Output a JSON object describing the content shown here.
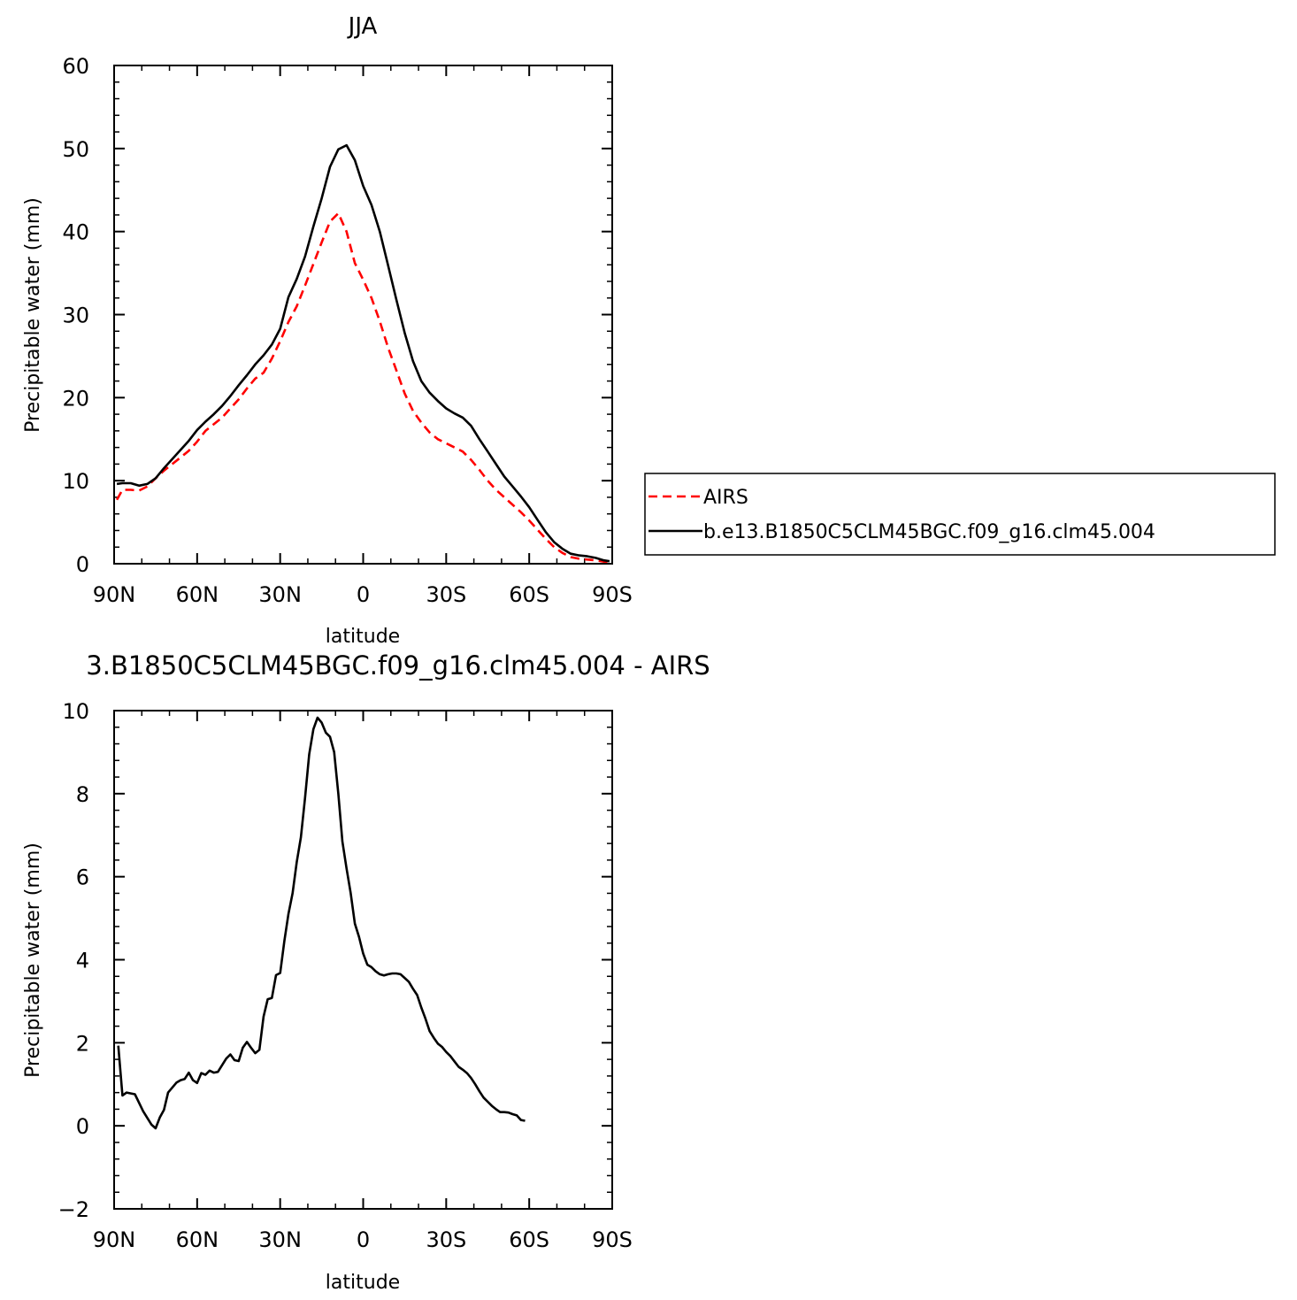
{
  "chart_data": [
    {
      "type": "line",
      "title": "JJA",
      "xlabel": "latitude",
      "ylabel": "Precipitable water (mm)",
      "xlim": [
        90,
        -90
      ],
      "ylim": [
        0,
        60
      ],
      "xticks": [
        {
          "v": 90,
          "label": "90N"
        },
        {
          "v": 60,
          "label": "60N"
        },
        {
          "v": 30,
          "label": "30N"
        },
        {
          "v": 0,
          "label": "0"
        },
        {
          "v": -30,
          "label": "30S"
        },
        {
          "v": -60,
          "label": "60S"
        },
        {
          "v": -90,
          "label": "90S"
        }
      ],
      "yticks": [
        {
          "v": 0,
          "label": "0"
        },
        {
          "v": 10,
          "label": "10"
        },
        {
          "v": 20,
          "label": "20"
        },
        {
          "v": 30,
          "label": "30"
        },
        {
          "v": 40,
          "label": "40"
        },
        {
          "v": 50,
          "label": "50"
        },
        {
          "v": 60,
          "label": "60"
        }
      ],
      "legend_position": "right",
      "series": [
        {
          "name": "AIRS",
          "color": "#ff0000",
          "dash": "dashed",
          "points": [
            [
              89,
              7.7
            ],
            [
              87,
              8.9
            ],
            [
              84,
              8.9
            ],
            [
              81,
              8.8
            ],
            [
              78,
              9.3
            ],
            [
              75,
              10.3
            ],
            [
              72,
              11.2
            ],
            [
              69,
              12.0
            ],
            [
              66,
              12.8
            ],
            [
              63,
              13.6
            ],
            [
              60,
              14.7
            ],
            [
              57,
              16.0
            ],
            [
              54,
              16.8
            ],
            [
              51,
              17.6
            ],
            [
              48,
              18.7
            ],
            [
              45,
              19.8
            ],
            [
              42,
              21.1
            ],
            [
              39,
              22.3
            ],
            [
              36,
              23.0
            ],
            [
              33,
              24.7
            ],
            [
              30,
              26.8
            ],
            [
              27,
              29.1
            ],
            [
              24,
              31.0
            ],
            [
              21,
              33.5
            ],
            [
              18,
              36.1
            ],
            [
              15,
              38.7
            ],
            [
              12,
              41.2
            ],
            [
              9,
              42.2
            ],
            [
              6,
              40.0
            ],
            [
              3,
              36.2
            ],
            [
              0,
              34.2
            ],
            [
              -3,
              32.0
            ],
            [
              -6,
              29.2
            ],
            [
              -9,
              26.0
            ],
            [
              -12,
              23.3
            ],
            [
              -15,
              20.5
            ],
            [
              -18,
              18.4
            ],
            [
              -21,
              17.0
            ],
            [
              -24,
              15.8
            ],
            [
              -27,
              15.0
            ],
            [
              -30,
              14.5
            ],
            [
              -33,
              14.0
            ],
            [
              -36,
              13.5
            ],
            [
              -39,
              12.5
            ],
            [
              -42,
              11.3
            ],
            [
              -45,
              10.0
            ],
            [
              -48,
              8.9
            ],
            [
              -51,
              8.0
            ],
            [
              -54,
              7.1
            ],
            [
              -57,
              6.2
            ],
            [
              -60,
              5.2
            ],
            [
              -63,
              4.1
            ],
            [
              -66,
              3.0
            ],
            [
              -69,
              2.0
            ],
            [
              -72,
              1.3
            ],
            [
              -75,
              0.8
            ],
            [
              -78,
              0.6
            ],
            [
              -81,
              0.5
            ],
            [
              -84,
              0.4
            ],
            [
              -87,
              0.25
            ],
            [
              -89,
              0.2
            ]
          ]
        },
        {
          "name": "b.e13.B1850C5CLM45BGC.f09_g16.clm45.004",
          "color": "#000000",
          "dash": "solid",
          "points": [
            [
              89,
              9.6
            ],
            [
              87,
              9.7
            ],
            [
              84,
              9.7
            ],
            [
              81,
              9.4
            ],
            [
              78,
              9.6
            ],
            [
              75,
              10.3
            ],
            [
              72,
              11.5
            ],
            [
              69,
              12.6
            ],
            [
              66,
              13.7
            ],
            [
              63,
              14.8
            ],
            [
              60,
              16.1
            ],
            [
              57,
              17.1
            ],
            [
              54,
              18.0
            ],
            [
              51,
              19.0
            ],
            [
              48,
              20.2
            ],
            [
              45,
              21.5
            ],
            [
              42,
              22.7
            ],
            [
              39,
              24.0
            ],
            [
              36,
              25.1
            ],
            [
              33,
              26.4
            ],
            [
              30,
              28.3
            ],
            [
              27,
              32.1
            ],
            [
              24,
              34.3
            ],
            [
              21,
              37.0
            ],
            [
              18,
              40.6
            ],
            [
              15,
              44.0
            ],
            [
              12,
              47.8
            ],
            [
              9,
              49.9
            ],
            [
              6,
              50.4
            ],
            [
              3,
              48.6
            ],
            [
              0,
              45.5
            ],
            [
              -3,
              43.2
            ],
            [
              -6,
              40.0
            ],
            [
              -9,
              35.9
            ],
            [
              -12,
              31.8
            ],
            [
              -15,
              27.8
            ],
            [
              -18,
              24.4
            ],
            [
              -21,
              22.0
            ],
            [
              -24,
              20.6
            ],
            [
              -27,
              19.6
            ],
            [
              -30,
              18.7
            ],
            [
              -33,
              18.1
            ],
            [
              -36,
              17.6
            ],
            [
              -39,
              16.6
            ],
            [
              -42,
              15.0
            ],
            [
              -45,
              13.5
            ],
            [
              -48,
              12.0
            ],
            [
              -51,
              10.5
            ],
            [
              -54,
              9.3
            ],
            [
              -57,
              8.1
            ],
            [
              -60,
              6.8
            ],
            [
              -63,
              5.3
            ],
            [
              -66,
              3.8
            ],
            [
              -69,
              2.6
            ],
            [
              -72,
              1.8
            ],
            [
              -75,
              1.2
            ],
            [
              -78,
              1.0
            ],
            [
              -81,
              0.9
            ],
            [
              -84,
              0.7
            ],
            [
              -87,
              0.4
            ],
            [
              -89,
              0.3
            ]
          ]
        }
      ]
    },
    {
      "type": "line",
      "title": "3.B1850C5CLM45BGC.f09_g16.clm45.004 - AIRS",
      "xlabel": "latitude",
      "ylabel": "Precipitable water (mm)",
      "xlim": [
        90,
        -90
      ],
      "ylim": [
        -2,
        10
      ],
      "xticks": [
        {
          "v": 90,
          "label": "90N"
        },
        {
          "v": 60,
          "label": "60N"
        },
        {
          "v": 30,
          "label": "30N"
        },
        {
          "v": 0,
          "label": "0"
        },
        {
          "v": -30,
          "label": "30S"
        },
        {
          "v": -60,
          "label": "60S"
        },
        {
          "v": -90,
          "label": "90S"
        }
      ],
      "yticks": [
        {
          "v": -2,
          "label": "−2"
        },
        {
          "v": 0,
          "label": "0"
        },
        {
          "v": 2,
          "label": "2"
        },
        {
          "v": 4,
          "label": "4"
        },
        {
          "v": 6,
          "label": "6"
        },
        {
          "v": 8,
          "label": "8"
        },
        {
          "v": 10,
          "label": "10"
        }
      ],
      "series": [
        {
          "name": "",
          "color": "#000000",
          "dash": "solid",
          "points": [
            [
              88.5,
              1.93
            ],
            [
              87,
              0.73
            ],
            [
              85.5,
              0.8
            ],
            [
              82.5,
              0.76
            ],
            [
              79.5,
              0.35
            ],
            [
              76.5,
              0.03
            ],
            [
              75,
              -0.06
            ],
            [
              73.5,
              0.2
            ],
            [
              72,
              0.38
            ],
            [
              70.5,
              0.8
            ],
            [
              67.5,
              1.04
            ],
            [
              66,
              1.1
            ],
            [
              64.5,
              1.13
            ],
            [
              63,
              1.28
            ],
            [
              61.5,
              1.1
            ],
            [
              60,
              1.03
            ],
            [
              58.5,
              1.27
            ],
            [
              57,
              1.23
            ],
            [
              55.5,
              1.33
            ],
            [
              54,
              1.28
            ],
            [
              52.5,
              1.3
            ],
            [
              49.5,
              1.62
            ],
            [
              48,
              1.72
            ],
            [
              46.5,
              1.58
            ],
            [
              45,
              1.56
            ],
            [
              43.5,
              1.88
            ],
            [
              42,
              2.02
            ],
            [
              40.5,
              1.88
            ],
            [
              39,
              1.75
            ],
            [
              37.5,
              1.83
            ],
            [
              36,
              2.63
            ],
            [
              34.5,
              3.05
            ],
            [
              33,
              3.08
            ],
            [
              31.5,
              3.63
            ],
            [
              30,
              3.68
            ],
            [
              28.5,
              4.45
            ],
            [
              27,
              5.1
            ],
            [
              25.5,
              5.6
            ],
            [
              24,
              6.35
            ],
            [
              22.5,
              6.95
            ],
            [
              21,
              7.9
            ],
            [
              19.5,
              8.95
            ],
            [
              18,
              9.55
            ],
            [
              16.5,
              9.83
            ],
            [
              15,
              9.71
            ],
            [
              13.5,
              9.47
            ],
            [
              12,
              9.37
            ],
            [
              10.5,
              9.0
            ],
            [
              9,
              8.0
            ],
            [
              7.5,
              6.85
            ],
            [
              6,
              6.2
            ],
            [
              4.5,
              5.6
            ],
            [
              3,
              4.87
            ],
            [
              1.5,
              4.55
            ],
            [
              0,
              4.15
            ],
            [
              -1.5,
              3.88
            ],
            [
              -3,
              3.82
            ],
            [
              -4.5,
              3.72
            ],
            [
              -6,
              3.65
            ],
            [
              -7.5,
              3.62
            ],
            [
              -9,
              3.65
            ],
            [
              -10.5,
              3.67
            ],
            [
              -12,
              3.67
            ],
            [
              -13.5,
              3.65
            ],
            [
              -15,
              3.56
            ],
            [
              -16.5,
              3.47
            ],
            [
              -18,
              3.3
            ],
            [
              -19.5,
              3.15
            ],
            [
              -21,
              2.85
            ],
            [
              -22.5,
              2.58
            ],
            [
              -24,
              2.28
            ],
            [
              -25.5,
              2.12
            ],
            [
              -27,
              1.98
            ],
            [
              -28.5,
              1.9
            ],
            [
              -30,
              1.78
            ],
            [
              -31.5,
              1.68
            ],
            [
              -33,
              1.55
            ],
            [
              -34.5,
              1.42
            ],
            [
              -36,
              1.35
            ],
            [
              -37.5,
              1.27
            ],
            [
              -39,
              1.15
            ],
            [
              -40.5,
              1.0
            ],
            [
              -42,
              0.83
            ],
            [
              -43.5,
              0.68
            ],
            [
              -45,
              0.58
            ],
            [
              -46.5,
              0.48
            ],
            [
              -48,
              0.4
            ],
            [
              -49.5,
              0.33
            ],
            [
              -51,
              0.33
            ],
            [
              -52.5,
              0.32
            ],
            [
              -54,
              0.28
            ],
            [
              -55.5,
              0.25
            ],
            [
              -57,
              0.14
            ],
            [
              -58.5,
              0.12
            ]
          ]
        }
      ]
    }
  ]
}
